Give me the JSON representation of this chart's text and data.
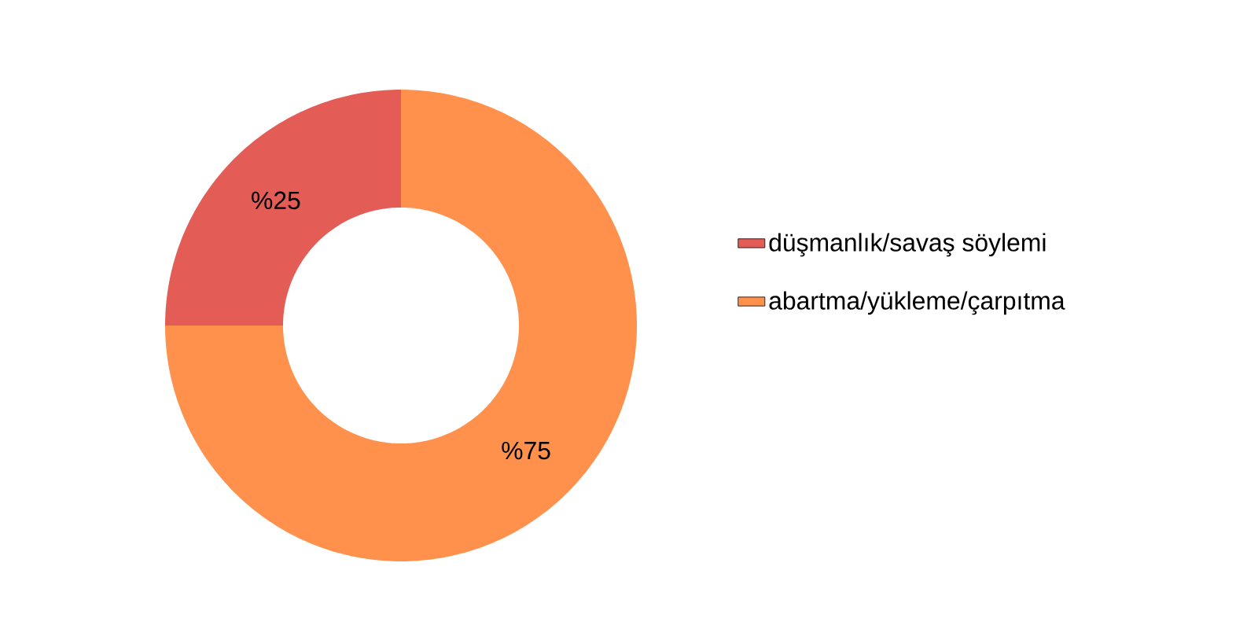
{
  "chart_data": {
    "type": "donut",
    "categories": [
      "düşmanlık/savaş söylemi",
      "abartma/yükleme/çarpıtma"
    ],
    "values": [
      25,
      75
    ],
    "colors": [
      "#e35d56",
      "#ff914d"
    ],
    "value_labels": [
      "%25",
      "%75"
    ],
    "legend": "right"
  }
}
